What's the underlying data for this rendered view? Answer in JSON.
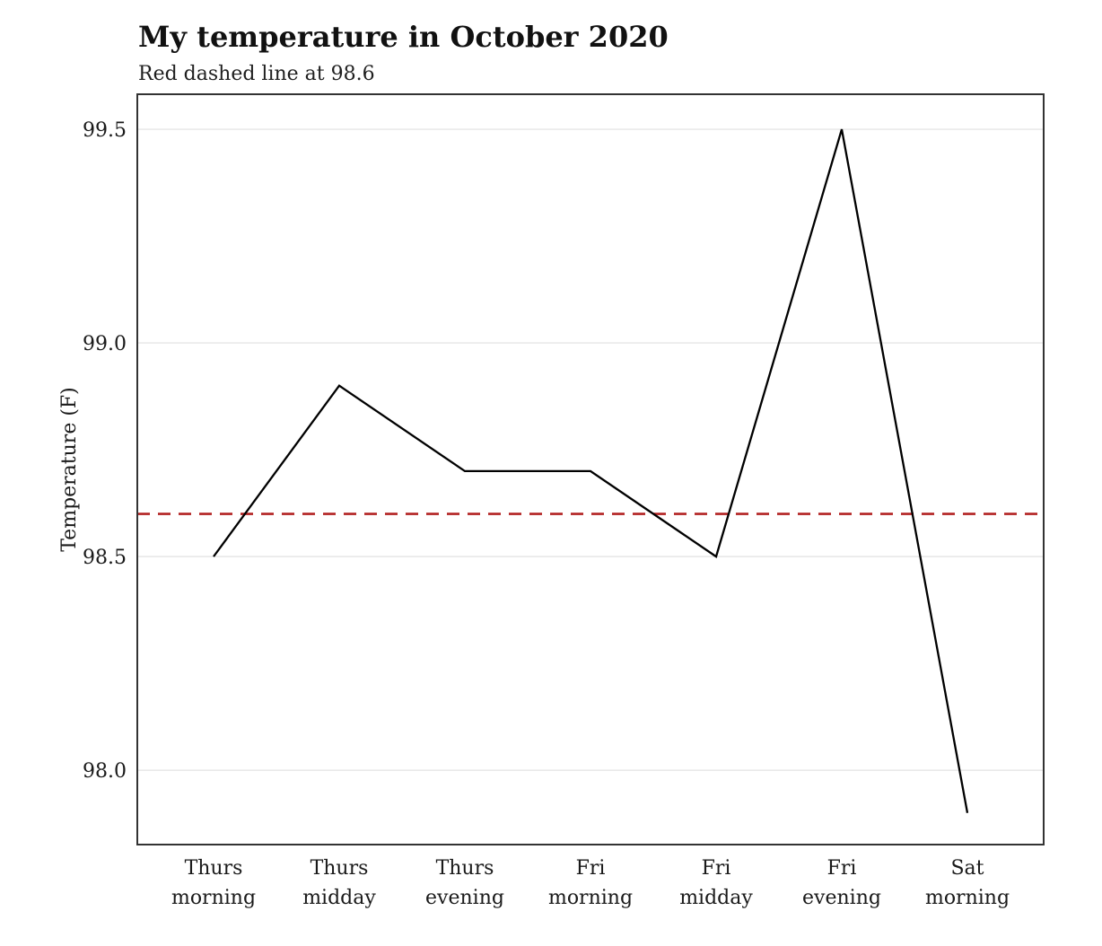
{
  "chart_data": {
    "type": "line",
    "title": "My temperature in October 2020",
    "subtitle": "Red dashed line at 98.6",
    "xlabel": "",
    "ylabel": "Temperature (F)",
    "categories": [
      "Thurs morning",
      "Thurs midday",
      "Thurs evening",
      "Fri morning",
      "Fri midday",
      "Fri evening",
      "Sat morning"
    ],
    "values": [
      98.5,
      98.9,
      98.7,
      98.7,
      98.5,
      99.5,
      97.9
    ],
    "reference_line": {
      "value": 98.6,
      "style": "dashed",
      "color": "#b22222",
      "description": "Red dashed line at 98.6"
    },
    "yticks": {
      "values": [
        98.0,
        98.5,
        99.0,
        99.5
      ],
      "labels": [
        "98.0",
        "98.5",
        "99.0",
        "99.5"
      ]
    },
    "ylim": [
      97.826,
      99.582
    ],
    "grid": "horizontal-only",
    "legend": "none",
    "colors": {
      "series": "#000000",
      "grid": "#e6e6e6",
      "panel_border": "#333333",
      "text": "#1a1a1a",
      "background": "#ffffff"
    }
  }
}
